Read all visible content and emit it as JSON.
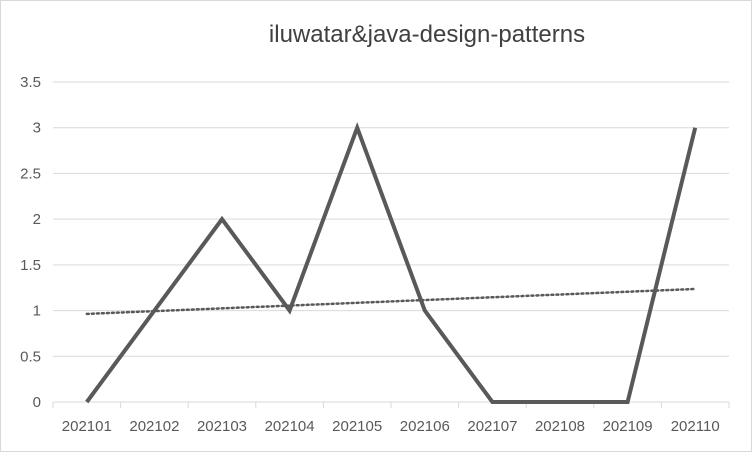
{
  "chart_data": {
    "type": "line",
    "title": "iluwatar&java-design-patterns",
    "xlabel": "",
    "ylabel": "",
    "categories": [
      "202101",
      "202102",
      "202103",
      "202104",
      "202105",
      "202106",
      "202107",
      "202108",
      "202109",
      "202110"
    ],
    "series": [
      {
        "values": [
          0,
          1,
          2,
          1,
          3,
          1,
          0,
          0,
          0,
          3
        ],
        "color": "#595959",
        "style": "solid"
      }
    ],
    "trendline": {
      "type": "linear",
      "color": "#595959",
      "style": "dotted"
    },
    "ylim": [
      0,
      3.5
    ],
    "yticks": [
      "0",
      "0.5",
      "1",
      "1.5",
      "2",
      "2.5",
      "3",
      "3.5"
    ],
    "grid": true,
    "legend": "none"
  }
}
